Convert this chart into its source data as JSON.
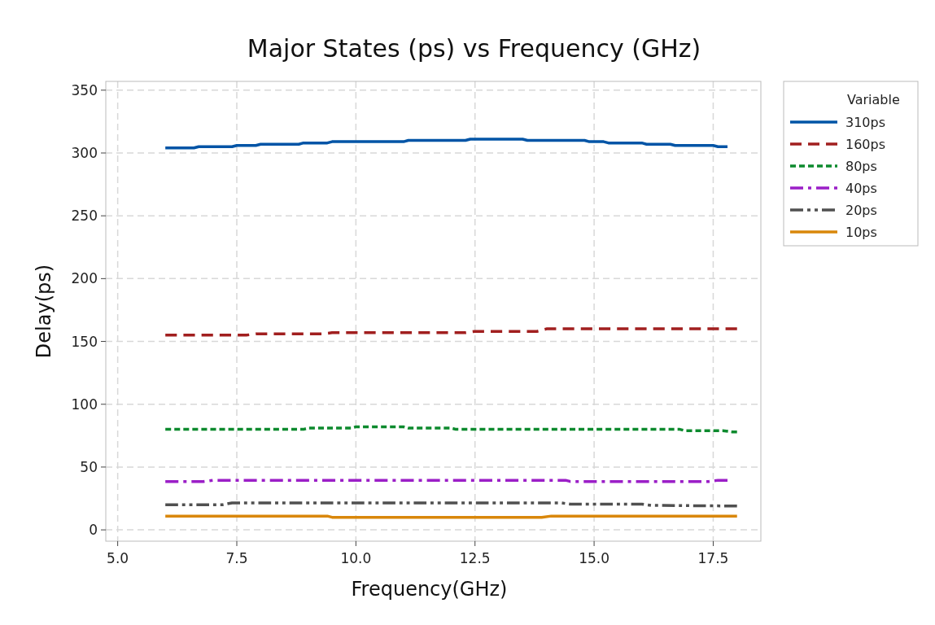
{
  "chart_data": {
    "type": "line",
    "title": "Major States (ps) vs Frequency (GHz)",
    "xlabel": "Frequency(GHz)",
    "ylabel": "Delay(ps)",
    "legend_title": "Variable",
    "legend": "top right",
    "grid": true,
    "xlim": [
      4.75,
      18.5
    ],
    "xticks": [
      {
        "value": 5,
        "label": "5.0"
      },
      {
        "value": 7.5,
        "label": "7.5"
      },
      {
        "value": 10,
        "label": "10.0"
      },
      {
        "value": 12.5,
        "label": "12.5"
      },
      {
        "value": 15,
        "label": "15.0"
      },
      {
        "value": 17.5,
        "label": "17.5"
      }
    ],
    "ylim": [
      -9,
      357
    ],
    "yticks": [
      0,
      50,
      100,
      150,
      200,
      250,
      300,
      350
    ],
    "series": [
      {
        "name": "310ps",
        "color": "#0054a6",
        "line_style": "solid",
        "x": [
          6.0,
          6.6,
          6.7,
          7.4,
          7.5,
          7.9,
          8.0,
          8.8,
          8.9,
          9.4,
          9.5,
          11.0,
          11.1,
          12.3,
          12.4,
          13.5,
          13.6,
          14.8,
          14.9,
          15.2,
          15.3,
          16.0,
          16.1,
          16.6,
          16.7,
          17.5,
          17.6,
          17.8
        ],
        "values": [
          304,
          304,
          305,
          305,
          306,
          306,
          307,
          307,
          308,
          308,
          309,
          309,
          310,
          310,
          311,
          311,
          310,
          310,
          309,
          309,
          308,
          308,
          307,
          307,
          306,
          306,
          305,
          305
        ]
      },
      {
        "name": "160ps",
        "color": "#a11f1f",
        "line_style": "dashed",
        "x": [
          6.0,
          7.7,
          7.9,
          9.3,
          9.5,
          12.3,
          12.5,
          13.8,
          14.0,
          18.0
        ],
        "values": [
          155,
          155,
          156,
          156,
          157,
          157,
          158,
          158,
          160,
          160
        ]
      },
      {
        "name": "80ps",
        "color": "#0d8a2e",
        "line_style": "dotted",
        "x": [
          6.0,
          8.9,
          9.0,
          9.9,
          10.0,
          11.0,
          11.1,
          12.0,
          12.1,
          16.8,
          16.9,
          17.7,
          17.9,
          18.0
        ],
        "values": [
          80,
          80,
          81,
          81,
          82,
          82,
          81,
          81,
          80,
          80,
          79,
          79,
          78,
          78
        ]
      },
      {
        "name": "40ps",
        "color": "#9b1fc7",
        "line_style": "dashdot",
        "x": [
          6.0,
          6.8,
          7.0,
          14.4,
          14.5,
          17.4,
          17.6,
          17.8
        ],
        "values": [
          38.5,
          38.5,
          39.5,
          39.5,
          38.5,
          38.5,
          39.5,
          39.5
        ]
      },
      {
        "name": "20ps",
        "color": "#505050",
        "line_style": "dashdotdot",
        "x": [
          6.0,
          7.2,
          7.4,
          14.3,
          14.5,
          16.0,
          16.2,
          18.0
        ],
        "values": [
          20,
          20,
          21.5,
          21.5,
          20.5,
          20.5,
          19.5,
          19
        ]
      },
      {
        "name": "10ps",
        "color": "#d9870a",
        "line_style": "solid",
        "x": [
          6.0,
          9.4,
          9.5,
          13.9,
          14.1,
          18.0
        ],
        "values": [
          11,
          11,
          10,
          10,
          11,
          11
        ]
      }
    ]
  }
}
